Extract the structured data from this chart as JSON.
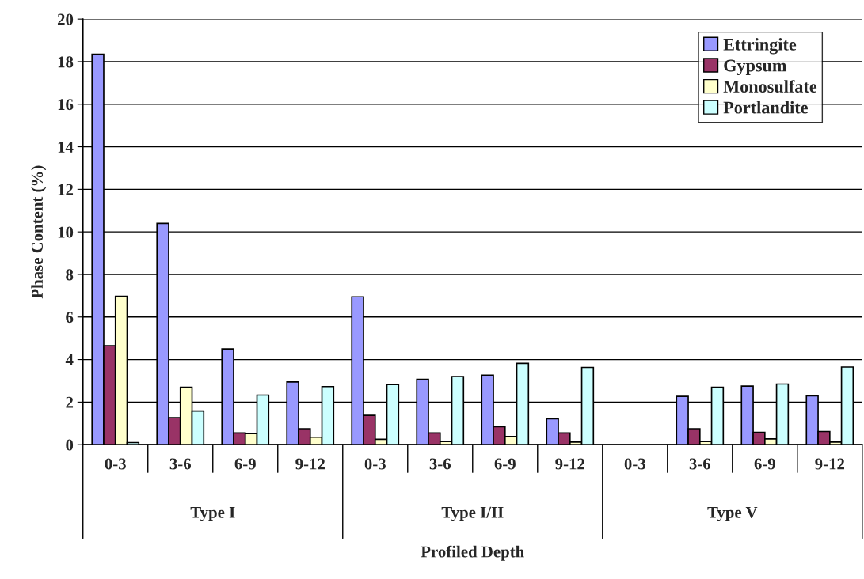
{
  "chart_data": {
    "type": "bar",
    "xlabel": "Profiled Depth",
    "ylabel": "Phase Content (%)",
    "categories": [
      "0-3",
      "3-6",
      "6-9",
      "9-12",
      "0-3",
      "3-6",
      "6-9",
      "9-12",
      "0-3",
      "3-6",
      "6-9",
      "9-12"
    ],
    "annotations": [
      "Type I",
      "Type I/II",
      "Type V"
    ],
    "series": [
      {
        "name": "Ettringite",
        "color": "#9999ff",
        "values": [
          18.35,
          10.4,
          4.5,
          2.95,
          6.95,
          3.07,
          3.27,
          1.22,
          null,
          2.27,
          2.75,
          2.3
        ]
      },
      {
        "name": "Gypsum",
        "color": "#993366",
        "values": [
          4.65,
          1.27,
          0.55,
          0.75,
          1.38,
          0.55,
          0.85,
          0.55,
          null,
          0.75,
          0.58,
          0.62
        ]
      },
      {
        "name": "Monosulfate",
        "color": "#ffffcc",
        "values": [
          6.97,
          2.7,
          0.52,
          0.35,
          0.25,
          0.15,
          0.38,
          0.12,
          null,
          0.15,
          0.27,
          0.12
        ]
      },
      {
        "name": "Portlandite",
        "color": "#ccffff",
        "values": [
          0.1,
          1.58,
          2.33,
          2.73,
          2.83,
          3.2,
          3.82,
          3.63,
          null,
          2.7,
          2.85,
          3.65
        ]
      }
    ],
    "ylim": [
      0,
      20
    ],
    "yticks": [
      0,
      2,
      4,
      6,
      8,
      10,
      12,
      14,
      16,
      18,
      20
    ],
    "grid": "y",
    "legend": "top right"
  }
}
